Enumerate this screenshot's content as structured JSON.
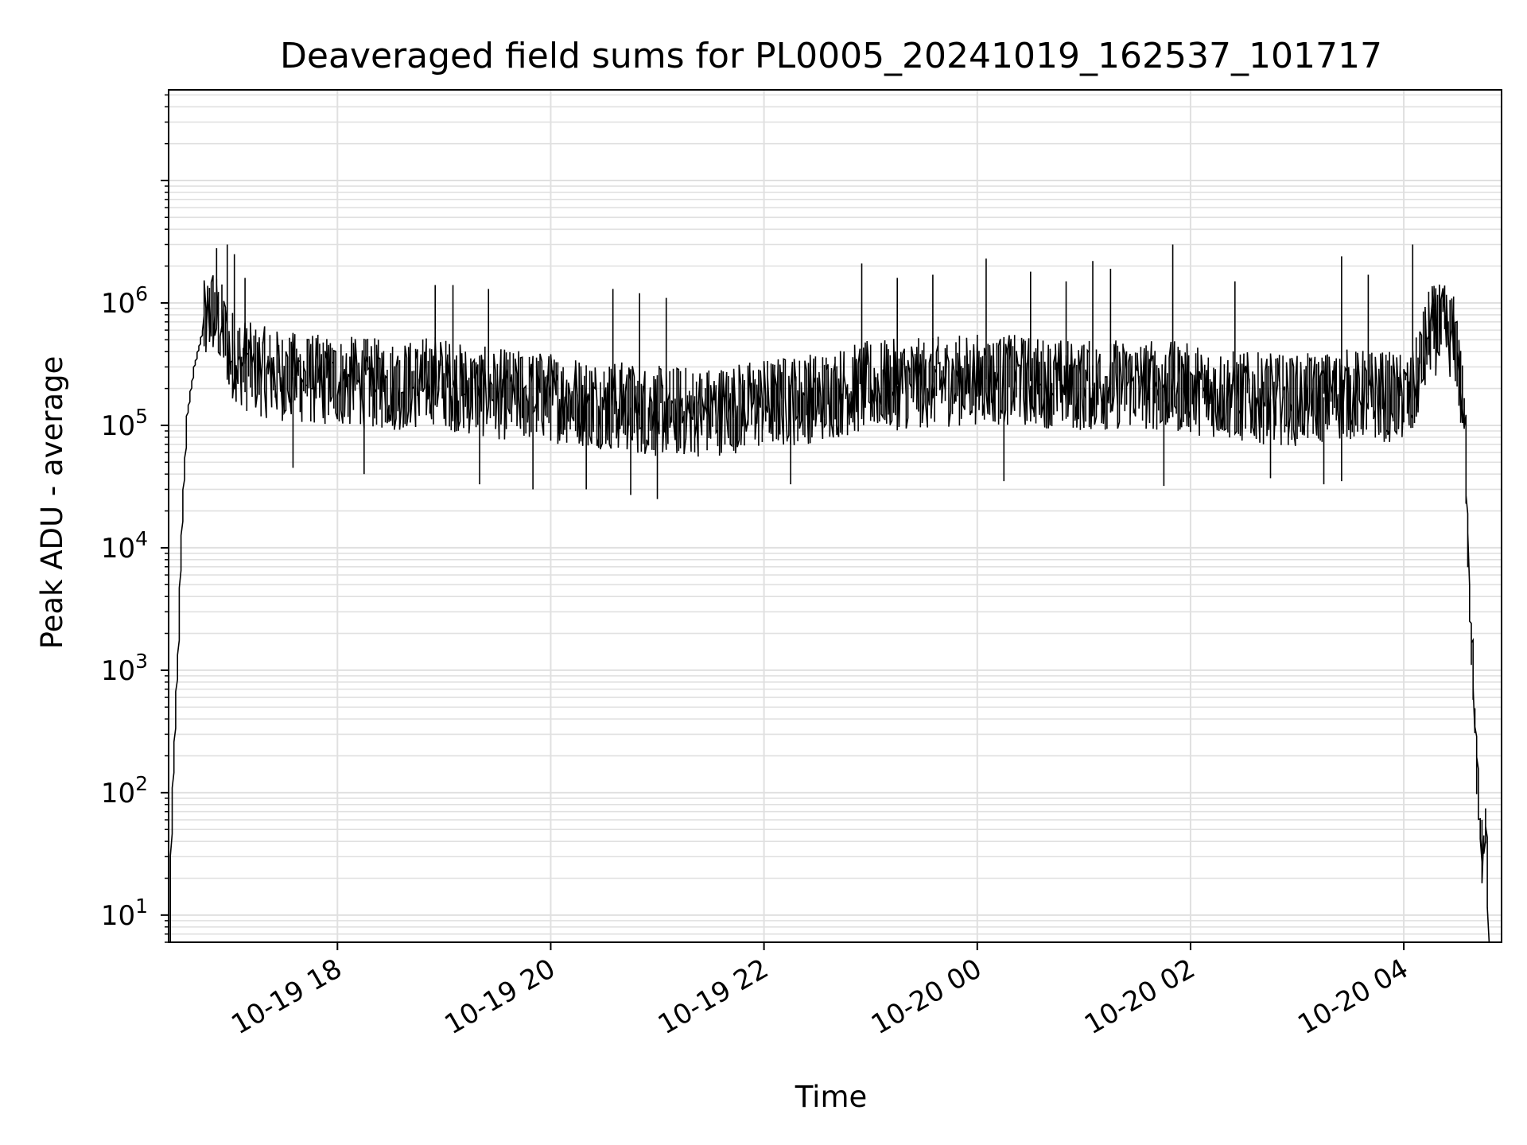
{
  "chart_data": {
    "type": "line",
    "title": "Deaveraged field sums for PL0005_20241019_162537_101717",
    "xlabel": "Time",
    "ylabel": "Peak ADU - average",
    "x_axis_kind": "datetime",
    "y_scale": "log",
    "xlim": [
      "2024-10-19 16:25",
      "2024-10-20 04:55"
    ],
    "ylim": [
      6,
      55000000
    ],
    "grid": true,
    "line_color": "#000000",
    "grid_color": "#e0e0e0",
    "x_tick_labels": [
      {
        "label": "10-19 18",
        "x": "2024-10-19 18:00"
      },
      {
        "label": "10-19 20",
        "x": "2024-10-19 20:00"
      },
      {
        "label": "10-19 22",
        "x": "2024-10-19 22:00"
      },
      {
        "label": "10-20 00",
        "x": "2024-10-20 00:00"
      },
      {
        "label": "10-20 02",
        "x": "2024-10-20 02:00"
      },
      {
        "label": "10-20 04",
        "x": "2024-10-20 04:00"
      }
    ],
    "y_tick_labels": [
      {
        "base": "10",
        "exp": "1",
        "y": 10
      },
      {
        "base": "10",
        "exp": "2",
        "y": 100
      },
      {
        "base": "10",
        "exp": "3",
        "y": 1000
      },
      {
        "base": "10",
        "exp": "4",
        "y": 10000
      },
      {
        "base": "10",
        "exp": "5",
        "y": 100000
      },
      {
        "base": "10",
        "exp": "6",
        "y": 1000000
      }
    ],
    "series": [
      {
        "x": [
          "2024-10-19 16:26",
          "2024-10-19 16:27",
          "2024-10-19 16:29",
          "2024-10-19 16:31",
          "2024-10-19 16:33",
          "2024-10-19 16:36",
          "2024-10-19 16:40",
          "2024-10-19 16:45",
          "2024-10-19 16:50",
          "2024-10-19 16:55",
          "2024-10-19 17:00",
          "2024-10-19 17:10",
          "2024-10-19 17:20",
          "2024-10-19 17:40",
          "2024-10-19 18:00",
          "2024-10-19 18:20",
          "2024-10-19 18:40",
          "2024-10-19 18:55",
          "2024-10-19 19:10",
          "2024-10-19 19:30",
          "2024-10-19 20:00",
          "2024-10-19 20:30",
          "2024-10-19 21:00",
          "2024-10-19 21:30",
          "2024-10-19 22:00",
          "2024-10-19 22:30",
          "2024-10-19 23:00",
          "2024-10-19 23:30",
          "2024-10-20 00:00",
          "2024-10-20 00:30",
          "2024-10-20 01:00",
          "2024-10-20 01:30",
          "2024-10-20 02:00",
          "2024-10-20 02:30",
          "2024-10-20 03:00",
          "2024-10-20 03:30",
          "2024-10-20 03:55",
          "2024-10-20 04:05",
          "2024-10-20 04:15",
          "2024-10-20 04:25",
          "2024-10-20 04:30",
          "2024-10-20 04:35",
          "2024-10-20 04:38",
          "2024-10-20 04:41",
          "2024-10-20 04:43",
          "2024-10-20 04:44",
          "2024-10-20 04:45",
          "2024-10-20 04:46",
          "2024-10-20 04:47",
          "2024-10-20 04:48"
        ],
        "y": [
          6,
          40,
          300,
          1500,
          15000,
          120000,
          300000,
          600000,
          900000,
          650000,
          400000,
          300000,
          270000,
          240000,
          230000,
          220000,
          210000,
          240000,
          200000,
          180000,
          170000,
          150000,
          130000,
          130000,
          150000,
          170000,
          210000,
          220000,
          240000,
          230000,
          210000,
          220000,
          200000,
          170000,
          160000,
          180000,
          170000,
          160000,
          600000,
          600000,
          450000,
          80000,
          3000,
          200,
          60,
          40,
          30,
          40,
          60,
          6
        ]
      }
    ],
    "spikes": {
      "up": [
        {
          "x": "2024-10-19 16:52",
          "y": 2800000
        },
        {
          "x": "2024-10-19 16:58",
          "y": 3000000
        },
        {
          "x": "2024-10-19 17:02",
          "y": 2500000
        },
        {
          "x": "2024-10-19 17:08",
          "y": 1600000
        },
        {
          "x": "2024-10-19 18:55",
          "y": 1400000
        },
        {
          "x": "2024-10-19 19:05",
          "y": 1400000
        },
        {
          "x": "2024-10-19 19:25",
          "y": 1300000
        },
        {
          "x": "2024-10-19 20:35",
          "y": 1300000
        },
        {
          "x": "2024-10-19 20:50",
          "y": 1200000
        },
        {
          "x": "2024-10-19 21:05",
          "y": 1100000
        },
        {
          "x": "2024-10-19 22:55",
          "y": 2100000
        },
        {
          "x": "2024-10-19 23:15",
          "y": 1600000
        },
        {
          "x": "2024-10-19 23:35",
          "y": 1700000
        },
        {
          "x": "2024-10-20 00:05",
          "y": 2300000
        },
        {
          "x": "2024-10-20 00:30",
          "y": 1800000
        },
        {
          "x": "2024-10-20 00:50",
          "y": 1500000
        },
        {
          "x": "2024-10-20 01:05",
          "y": 2200000
        },
        {
          "x": "2024-10-20 01:15",
          "y": 1900000
        },
        {
          "x": "2024-10-20 01:50",
          "y": 3000000
        },
        {
          "x": "2024-10-20 02:25",
          "y": 1500000
        },
        {
          "x": "2024-10-20 03:25",
          "y": 2400000
        },
        {
          "x": "2024-10-20 03:40",
          "y": 1700000
        },
        {
          "x": "2024-10-20 04:05",
          "y": 3000000
        },
        {
          "x": "2024-10-20 04:20",
          "y": 1100000
        }
      ],
      "down": [
        {
          "x": "2024-10-19 17:35",
          "y": 45000
        },
        {
          "x": "2024-10-19 18:15",
          "y": 40000
        },
        {
          "x": "2024-10-19 19:20",
          "y": 33000
        },
        {
          "x": "2024-10-19 19:50",
          "y": 30000
        },
        {
          "x": "2024-10-19 20:20",
          "y": 30000
        },
        {
          "x": "2024-10-19 20:45",
          "y": 27000
        },
        {
          "x": "2024-10-19 21:00",
          "y": 25000
        },
        {
          "x": "2024-10-19 22:15",
          "y": 33000
        },
        {
          "x": "2024-10-20 00:15",
          "y": 35000
        },
        {
          "x": "2024-10-20 01:45",
          "y": 32000
        },
        {
          "x": "2024-10-20 02:45",
          "y": 37000
        },
        {
          "x": "2024-10-20 03:15",
          "y": 33000
        },
        {
          "x": "2024-10-20 03:25",
          "y": 35000
        }
      ]
    }
  }
}
